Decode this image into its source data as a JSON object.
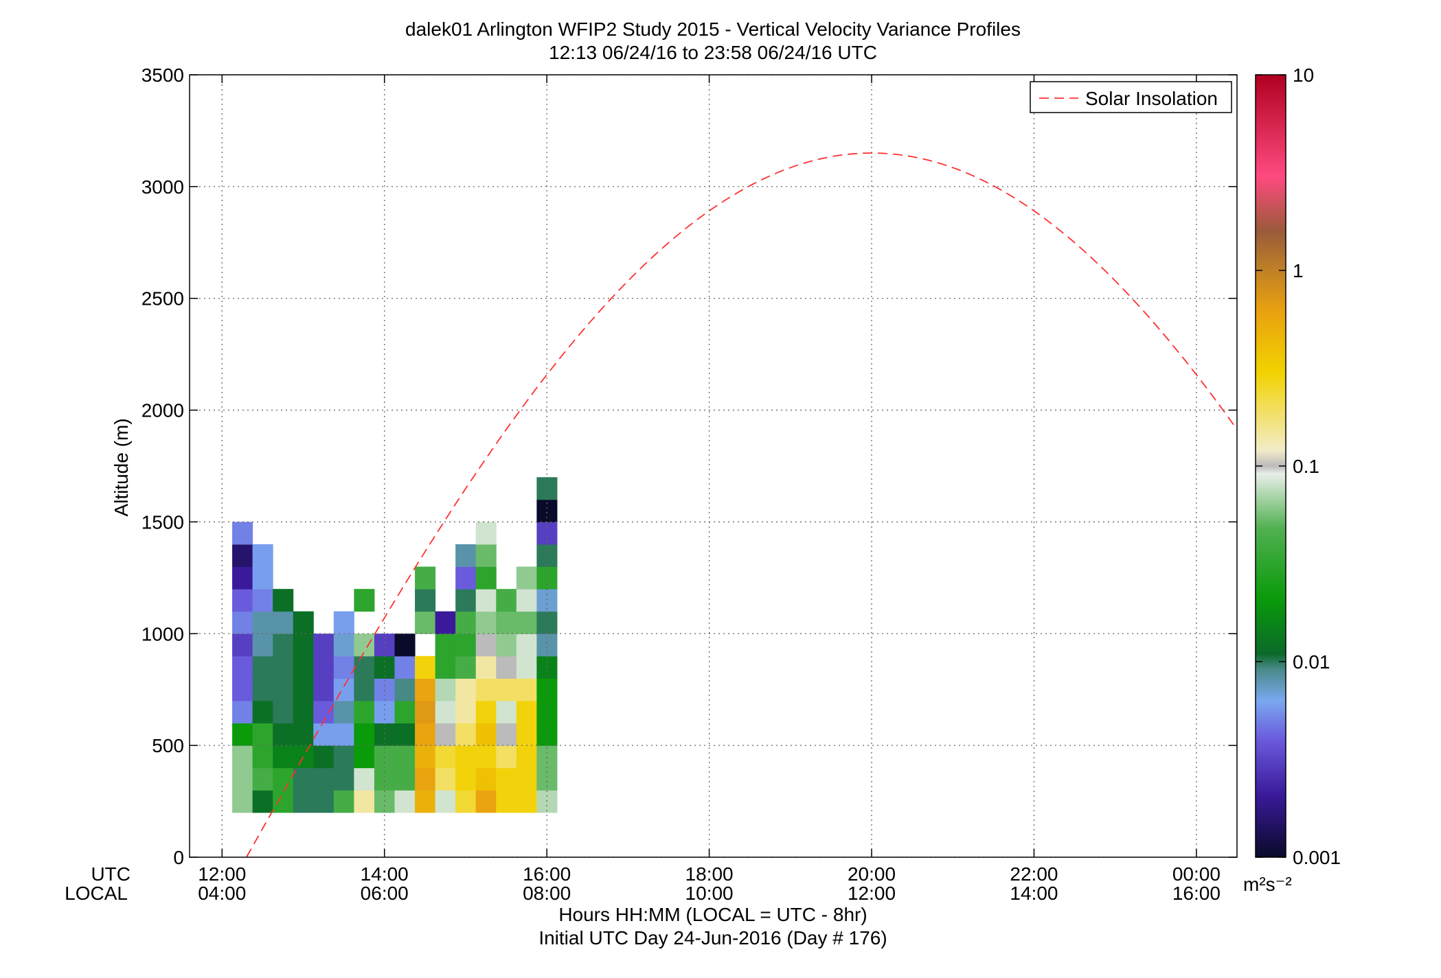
{
  "chart_data": {
    "type": "heatmap",
    "title": "dalek01 Arlington WFIP2 Study 2015 - Vertical Velocity Variance Profiles",
    "subtitle": "12:13 06/24/16 to 23:58 06/24/16  UTC",
    "xlabel": "Hours HH:MM  (LOCAL = UTC - 8hr)",
    "xlabel2": "Initial UTC Day 24-Jun-2016 (Day # 176)",
    "ylabel": "Altitude (m)",
    "x_row_labels": [
      "UTC",
      "LOCAL"
    ],
    "x_ticks_utc": [
      "12:00",
      "14:00",
      "16:00",
      "18:00",
      "20:00",
      "22:00",
      "00:00"
    ],
    "x_ticks_local": [
      "04:00",
      "06:00",
      "08:00",
      "10:00",
      "12:00",
      "14:00",
      "16:00"
    ],
    "x_tick_hours": [
      12,
      14,
      16,
      18,
      20,
      22,
      24
    ],
    "xlim_hours": [
      11.6,
      24.5
    ],
    "y_ticks": [
      "0",
      "500",
      "1000",
      "1500",
      "2000",
      "2500",
      "3000",
      "3500"
    ],
    "ylim": [
      0,
      3500
    ],
    "grid": true,
    "colorbar": {
      "scale": "log",
      "range": [
        0.001,
        10
      ],
      "tick_labels": [
        "0.001",
        "0.01",
        "0.1",
        "1",
        "10"
      ],
      "unit": "m²s⁻²"
    },
    "legend": {
      "position": "top-right",
      "entries": [
        "Solar Insolation"
      ]
    },
    "solar_insolation": {
      "peak_hour": 20.0,
      "peak_altitude": 3150,
      "rise_hour": 12.3
    },
    "time_bin_hours": 0.25,
    "altitude_bin_m": 50,
    "cells_variance_m2s2": [
      {
        "t": 12.25,
        "alts": [
          250,
          350,
          450,
          550,
          650,
          750,
          850,
          950,
          1050,
          1150,
          1250,
          1350,
          1450
        ],
        "v": [
          0.06,
          0.06,
          0.06,
          0.02,
          0.005,
          0.004,
          0.004,
          0.003,
          0.005,
          0.004,
          0.002,
          0.0015,
          0.005
        ]
      },
      {
        "t": 12.5,
        "alts": [
          250,
          350,
          450,
          550,
          650,
          750,
          850,
          950,
          1050,
          1150,
          1250,
          1350
        ],
        "v": [
          0.012,
          0.04,
          0.03,
          0.03,
          0.012,
          0.01,
          0.01,
          0.008,
          0.008,
          0.005,
          0.006,
          0.006
        ]
      },
      {
        "t": 12.75,
        "alts": [
          250,
          350,
          450,
          550,
          650,
          750,
          850,
          950,
          1050,
          1150
        ],
        "v": [
          0.03,
          0.03,
          0.015,
          0.012,
          0.01,
          0.01,
          0.01,
          0.01,
          0.008,
          0.012
        ]
      },
      {
        "t": 13.0,
        "alts": [
          250,
          350,
          450,
          550,
          650,
          750,
          850,
          950,
          1050
        ],
        "v": [
          0.01,
          0.01,
          0.015,
          0.012,
          0.012,
          0.012,
          0.012,
          0.012,
          0.012
        ]
      },
      {
        "t": 13.25,
        "alts": [
          250,
          350,
          450,
          550,
          650,
          750,
          850,
          950
        ],
        "v": [
          0.01,
          0.01,
          0.012,
          0.006,
          0.004,
          0.003,
          0.003,
          0.003
        ]
      },
      {
        "t": 13.5,
        "alts": [
          250,
          350,
          450,
          550,
          650,
          750,
          850,
          950,
          1050
        ],
        "v": [
          0.04,
          0.01,
          0.01,
          0.006,
          0.008,
          0.006,
          0.005,
          0.007,
          0.006
        ]
      },
      {
        "t": 13.75,
        "alts": [
          250,
          350,
          450,
          550,
          650,
          750,
          850,
          950,
          1150
        ],
        "v": [
          0.15,
          0.08,
          0.02,
          0.02,
          0.03,
          0.01,
          0.01,
          0.06,
          0.03
        ]
      },
      {
        "t": 14.0,
        "alts": [
          250,
          350,
          450,
          550,
          650,
          750,
          850,
          950
        ],
        "v": [
          0.05,
          0.04,
          0.04,
          0.012,
          0.006,
          0.005,
          0.012,
          0.003
        ]
      },
      {
        "t": 14.25,
        "alts": [
          250,
          350,
          450,
          550,
          650,
          750,
          850,
          950
        ],
        "v": [
          0.08,
          0.04,
          0.04,
          0.012,
          0.03,
          0.009,
          0.005,
          0.001
        ]
      },
      {
        "t": 14.5,
        "alts": [
          250,
          350,
          450,
          550,
          650,
          750,
          850,
          1050,
          1150,
          1250
        ],
        "v": [
          0.5,
          0.6,
          0.5,
          0.6,
          0.7,
          0.6,
          0.3,
          0.05,
          0.01,
          0.04
        ]
      },
      {
        "t": 14.75,
        "alts": [
          250,
          350,
          450,
          550,
          650,
          750,
          850,
          950,
          1050
        ],
        "v": [
          0.08,
          0.2,
          0.25,
          0.1,
          0.08,
          0.07,
          0.03,
          0.03,
          0.002
        ]
      },
      {
        "t": 15.0,
        "alts": [
          250,
          350,
          450,
          550,
          650,
          750,
          850,
          950,
          1050,
          1150,
          1250,
          1350
        ],
        "v": [
          0.25,
          0.3,
          0.3,
          0.2,
          0.15,
          0.15,
          0.04,
          0.03,
          0.04,
          0.01,
          0.004,
          0.008
        ]
      },
      {
        "t": 15.25,
        "alts": [
          250,
          350,
          450,
          550,
          650,
          750,
          850,
          950,
          1050,
          1150,
          1250,
          1350,
          1450
        ],
        "v": [
          0.6,
          0.4,
          0.3,
          0.4,
          0.3,
          0.2,
          0.15,
          0.1,
          0.06,
          0.08,
          0.03,
          0.05,
          0.08
        ]
      },
      {
        "t": 15.5,
        "alts": [
          250,
          350,
          450,
          550,
          650,
          750,
          850,
          950,
          1050,
          1150
        ],
        "v": [
          0.3,
          0.3,
          0.2,
          0.1,
          0.08,
          0.2,
          0.1,
          0.06,
          0.05,
          0.04
        ]
      },
      {
        "t": 15.75,
        "alts": [
          250,
          350,
          450,
          550,
          650,
          750,
          850,
          950,
          1050,
          1150,
          1250
        ],
        "v": [
          0.3,
          0.3,
          0.3,
          0.3,
          0.3,
          0.2,
          0.08,
          0.08,
          0.05,
          0.08,
          0.06
        ]
      },
      {
        "t": 16.0,
        "alts": [
          250,
          350,
          450,
          550,
          650,
          750,
          850,
          950,
          1050,
          1150,
          1250,
          1350,
          1450,
          1550,
          1650
        ],
        "v": [
          0.07,
          0.05,
          0.05,
          0.02,
          0.02,
          0.02,
          0.015,
          0.008,
          0.01,
          0.007,
          0.03,
          0.01,
          0.003,
          0.001,
          0.01
        ]
      }
    ]
  }
}
